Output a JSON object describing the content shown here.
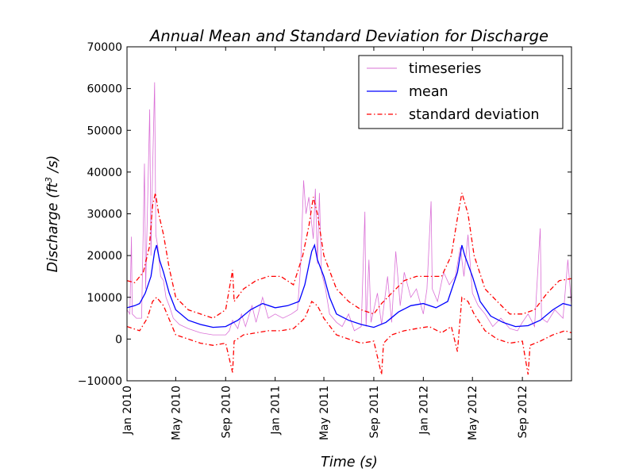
{
  "chart_data": {
    "type": "line",
    "title": "Annual Mean and Standard Deviation for Discharge",
    "xlabel": "Time (s)",
    "ylabel": {
      "prefix": "Discharge (",
      "var": "ft",
      "exponent": "3",
      "suffix": " /s)"
    },
    "xlim": [
      "2010-01-01",
      "2012-12-31"
    ],
    "ylim": [
      -10000,
      70000
    ],
    "y_ticks": [
      -10000,
      0,
      10000,
      20000,
      30000,
      40000,
      50000,
      60000,
      70000
    ],
    "y_tick_labels": [
      "−10000",
      "0",
      "10000",
      "20000",
      "30000",
      "40000",
      "50000",
      "60000",
      "70000"
    ],
    "x_ticks": [
      "2010-01-01",
      "2010-05-01",
      "2010-09-01",
      "2011-01-01",
      "2011-05-01",
      "2011-09-01",
      "2012-01-01",
      "2012-05-01",
      "2012-09-01"
    ],
    "x_tick_labels": [
      "Jan 2010",
      "May 2010",
      "Sep 2010",
      "Jan 2011",
      "May 2011",
      "Sep 2011",
      "Jan 2012",
      "May 2012",
      "Sep 2012"
    ],
    "grid": false,
    "legend_position": "top-right",
    "series": [
      {
        "name": "timeseries",
        "color": "#da70d6",
        "style": "solid",
        "points": [
          [
            "2010-01-01",
            7000
          ],
          [
            "2010-01-08",
            6000
          ],
          [
            "2010-01-12",
            24500
          ],
          [
            "2010-01-14",
            6000
          ],
          [
            "2010-01-24",
            5000
          ],
          [
            "2010-02-06",
            5000
          ],
          [
            "2010-02-13",
            42000
          ],
          [
            "2010-02-16",
            12000
          ],
          [
            "2010-02-26",
            55000
          ],
          [
            "2010-03-01",
            20000
          ],
          [
            "2010-03-05",
            40000
          ],
          [
            "2010-03-10",
            61500
          ],
          [
            "2010-03-13",
            25000
          ],
          [
            "2010-03-18",
            22000
          ],
          [
            "2010-03-25",
            15000
          ],
          [
            "2010-04-01",
            14000
          ],
          [
            "2010-04-07",
            10000
          ],
          [
            "2010-04-15",
            8000
          ],
          [
            "2010-04-25",
            5000
          ],
          [
            "2010-05-10",
            3500
          ],
          [
            "2010-06-01",
            2500
          ],
          [
            "2010-07-01",
            1500
          ],
          [
            "2010-08-01",
            1000
          ],
          [
            "2010-09-01",
            1000
          ],
          [
            "2010-09-10",
            2000
          ],
          [
            "2010-09-18",
            4500
          ],
          [
            "2010-10-01",
            2500
          ],
          [
            "2010-10-10",
            6000
          ],
          [
            "2010-10-20",
            3000
          ],
          [
            "2010-11-05",
            8000
          ],
          [
            "2010-11-15",
            4000
          ],
          [
            "2010-12-01",
            10000
          ],
          [
            "2010-12-15",
            5000
          ],
          [
            "2011-01-01",
            6000
          ],
          [
            "2011-01-20",
            5000
          ],
          [
            "2011-02-10",
            6000
          ],
          [
            "2011-02-25",
            7000
          ],
          [
            "2011-03-05",
            18000
          ],
          [
            "2011-03-12",
            38000
          ],
          [
            "2011-03-18",
            30000
          ],
          [
            "2011-03-25",
            34000
          ],
          [
            "2011-04-05",
            24000
          ],
          [
            "2011-04-10",
            36000
          ],
          [
            "2011-04-15",
            18000
          ],
          [
            "2011-04-20",
            35000
          ],
          [
            "2011-04-25",
            16000
          ],
          [
            "2011-05-05",
            12000
          ],
          [
            "2011-05-15",
            6000
          ],
          [
            "2011-06-01",
            4000
          ],
          [
            "2011-06-15",
            3000
          ],
          [
            "2011-07-01",
            6000
          ],
          [
            "2011-07-15",
            2000
          ],
          [
            "2011-08-01",
            3000
          ],
          [
            "2011-08-10",
            30500
          ],
          [
            "2011-08-13",
            3000
          ],
          [
            "2011-08-20",
            19000
          ],
          [
            "2011-08-25",
            4000
          ],
          [
            "2011-09-10",
            11000
          ],
          [
            "2011-09-20",
            3500
          ],
          [
            "2011-10-05",
            15000
          ],
          [
            "2011-10-15",
            4000
          ],
          [
            "2011-10-25",
            21000
          ],
          [
            "2011-11-05",
            8000
          ],
          [
            "2011-11-15",
            16000
          ],
          [
            "2011-12-01",
            10000
          ],
          [
            "2011-12-15",
            12000
          ],
          [
            "2012-01-01",
            6000
          ],
          [
            "2012-01-10",
            12000
          ],
          [
            "2012-01-20",
            33000
          ],
          [
            "2012-01-23",
            12000
          ],
          [
            "2012-02-05",
            9000
          ],
          [
            "2012-02-20",
            16000
          ],
          [
            "2012-03-05",
            13000
          ],
          [
            "2012-03-20",
            15000
          ],
          [
            "2012-04-01",
            22000
          ],
          [
            "2012-04-10",
            15000
          ],
          [
            "2012-04-20",
            25000
          ],
          [
            "2012-05-01",
            11000
          ],
          [
            "2012-05-15",
            8000
          ],
          [
            "2012-06-01",
            6000
          ],
          [
            "2012-06-20",
            3000
          ],
          [
            "2012-07-10",
            5000
          ],
          [
            "2012-08-01",
            2500
          ],
          [
            "2012-08-20",
            2000
          ],
          [
            "2012-09-01",
            4000
          ],
          [
            "2012-09-15",
            6000
          ],
          [
            "2012-10-01",
            3000
          ],
          [
            "2012-10-15",
            26500
          ],
          [
            "2012-10-18",
            5000
          ],
          [
            "2012-11-01",
            4000
          ],
          [
            "2012-11-20",
            7000
          ],
          [
            "2012-12-10",
            5000
          ],
          [
            "2012-12-22",
            19000
          ],
          [
            "2012-12-31",
            8000
          ]
        ]
      },
      {
        "name": "mean",
        "color": "#0000ff",
        "style": "solid",
        "points": [
          [
            "2010-01-01",
            7500
          ],
          [
            "2010-01-20",
            8000
          ],
          [
            "2010-02-01",
            8500
          ],
          [
            "2010-02-15",
            11000
          ],
          [
            "2010-03-01",
            15000
          ],
          [
            "2010-03-10",
            21000
          ],
          [
            "2010-03-15",
            22500
          ],
          [
            "2010-03-22",
            19000
          ],
          [
            "2010-04-01",
            16000
          ],
          [
            "2010-04-15",
            11000
          ],
          [
            "2010-05-01",
            7000
          ],
          [
            "2010-06-01",
            4500
          ],
          [
            "2010-07-01",
            3500
          ],
          [
            "2010-08-01",
            2800
          ],
          [
            "2010-09-01",
            3000
          ],
          [
            "2010-10-01",
            4500
          ],
          [
            "2010-11-01",
            7000
          ],
          [
            "2010-12-01",
            8500
          ],
          [
            "2011-01-01",
            7500
          ],
          [
            "2011-02-01",
            8000
          ],
          [
            "2011-03-01",
            9000
          ],
          [
            "2011-03-15",
            13000
          ],
          [
            "2011-04-01",
            21000
          ],
          [
            "2011-04-08",
            22500
          ],
          [
            "2011-04-15",
            19000
          ],
          [
            "2011-05-01",
            15000
          ],
          [
            "2011-05-15",
            10000
          ],
          [
            "2011-06-01",
            6000
          ],
          [
            "2011-07-01",
            4500
          ],
          [
            "2011-08-01",
            3500
          ],
          [
            "2011-09-01",
            2800
          ],
          [
            "2011-10-01",
            4000
          ],
          [
            "2011-11-01",
            6500
          ],
          [
            "2011-12-01",
            8000
          ],
          [
            "2012-01-01",
            8500
          ],
          [
            "2012-02-01",
            7500
          ],
          [
            "2012-03-01",
            9000
          ],
          [
            "2012-03-25",
            16000
          ],
          [
            "2012-04-05",
            22500
          ],
          [
            "2012-04-12",
            20000
          ],
          [
            "2012-05-01",
            15000
          ],
          [
            "2012-05-20",
            9000
          ],
          [
            "2012-06-15",
            5500
          ],
          [
            "2012-07-15",
            4000
          ],
          [
            "2012-08-15",
            3000
          ],
          [
            "2012-09-15",
            3200
          ],
          [
            "2012-10-15",
            4500
          ],
          [
            "2012-11-15",
            7000
          ],
          [
            "2012-12-10",
            8500
          ],
          [
            "2012-12-31",
            8000
          ]
        ]
      },
      {
        "name": "standard deviation",
        "color": "#ff0000",
        "style": "dashdot",
        "points": [
          [
            "2010-01-01",
            14000
          ],
          [
            "2010-01-20",
            13500
          ],
          [
            "2010-02-10",
            16000
          ],
          [
            "2010-02-25",
            22000
          ],
          [
            "2010-03-05",
            32000
          ],
          [
            "2010-03-12",
            35000
          ],
          [
            "2010-03-20",
            30000
          ],
          [
            "2010-04-01",
            25000
          ],
          [
            "2010-04-15",
            17000
          ],
          [
            "2010-05-01",
            10000
          ],
          [
            "2010-06-01",
            7000
          ],
          [
            "2010-07-01",
            6000
          ],
          [
            "2010-08-01",
            5000
          ],
          [
            "2010-09-01",
            7000
          ],
          [
            "2010-09-18",
            16500
          ],
          [
            "2010-09-22",
            9000
          ],
          [
            "2010-10-15",
            12000
          ],
          [
            "2010-11-15",
            14000
          ],
          [
            "2010-12-15",
            15000
          ],
          [
            "2011-01-15",
            15000
          ],
          [
            "2011-02-15",
            13000
          ],
          [
            "2011-03-10",
            20000
          ],
          [
            "2011-03-25",
            27000
          ],
          [
            "2011-04-05",
            34000
          ],
          [
            "2011-04-15",
            30000
          ],
          [
            "2011-05-01",
            20000
          ],
          [
            "2011-06-01",
            12000
          ],
          [
            "2011-07-01",
            9000
          ],
          [
            "2011-08-01",
            7000
          ],
          [
            "2011-09-01",
            6000
          ],
          [
            "2011-09-20",
            8500
          ],
          [
            "2011-10-15",
            11000
          ],
          [
            "2011-11-15",
            14000
          ],
          [
            "2011-12-15",
            15000
          ],
          [
            "2012-01-15",
            15000
          ],
          [
            "2012-02-15",
            15000
          ],
          [
            "2012-03-10",
            20000
          ],
          [
            "2012-03-25",
            29000
          ],
          [
            "2012-04-05",
            35000
          ],
          [
            "2012-04-20",
            30000
          ],
          [
            "2012-05-05",
            20000
          ],
          [
            "2012-06-01",
            12000
          ],
          [
            "2012-07-01",
            9000
          ],
          [
            "2012-08-01",
            6000
          ],
          [
            "2012-09-01",
            6000
          ],
          [
            "2012-10-01",
            7000
          ],
          [
            "2012-11-01",
            11000
          ],
          [
            "2012-12-01",
            14000
          ],
          [
            "2012-12-31",
            14500
          ]
        ],
        "lower_points": [
          [
            "2010-01-01",
            3000
          ],
          [
            "2010-02-01",
            2000
          ],
          [
            "2010-02-20",
            5000
          ],
          [
            "2010-03-05",
            9000
          ],
          [
            "2010-03-15",
            10000
          ],
          [
            "2010-04-01",
            8000
          ],
          [
            "2010-05-01",
            1000
          ],
          [
            "2010-06-01",
            0
          ],
          [
            "2010-07-01",
            -1000
          ],
          [
            "2010-08-01",
            -1500
          ],
          [
            "2010-09-01",
            -1000
          ],
          [
            "2010-09-18",
            -8000
          ],
          [
            "2010-09-22",
            -500
          ],
          [
            "2010-10-15",
            1000
          ],
          [
            "2010-11-15",
            1500
          ],
          [
            "2010-12-15",
            2000
          ],
          [
            "2011-01-15",
            2000
          ],
          [
            "2011-02-15",
            2500
          ],
          [
            "2011-03-15",
            5000
          ],
          [
            "2011-04-01",
            9000
          ],
          [
            "2011-04-15",
            8000
          ],
          [
            "2011-05-01",
            5000
          ],
          [
            "2011-06-01",
            1000
          ],
          [
            "2011-07-01",
            0
          ],
          [
            "2011-08-01",
            -1000
          ],
          [
            "2011-09-01",
            -500
          ],
          [
            "2011-09-20",
            -8500
          ],
          [
            "2011-09-25",
            -1000
          ],
          [
            "2011-10-15",
            1000
          ],
          [
            "2011-11-15",
            2000
          ],
          [
            "2011-12-15",
            2500
          ],
          [
            "2012-01-15",
            3000
          ],
          [
            "2012-02-15",
            1500
          ],
          [
            "2012-03-10",
            3000
          ],
          [
            "2012-03-25",
            -3000
          ],
          [
            "2012-04-05",
            10000
          ],
          [
            "2012-04-20",
            9000
          ],
          [
            "2012-05-05",
            6000
          ],
          [
            "2012-06-01",
            2000
          ],
          [
            "2012-07-01",
            0
          ],
          [
            "2012-08-01",
            -1000
          ],
          [
            "2012-09-01",
            -500
          ],
          [
            "2012-09-15",
            -8500
          ],
          [
            "2012-09-20",
            -1500
          ],
          [
            "2012-10-15",
            -500
          ],
          [
            "2012-11-15",
            1000
          ],
          [
            "2012-12-15",
            2000
          ],
          [
            "2012-12-31",
            1500
          ]
        ]
      }
    ]
  }
}
